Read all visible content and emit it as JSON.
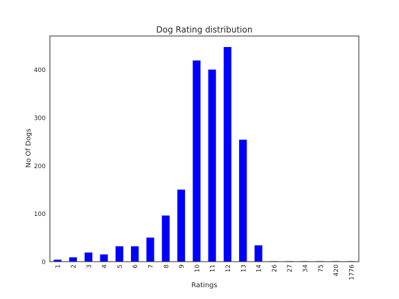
{
  "chart_data": {
    "type": "bar",
    "title": "Dog Rating distribution",
    "xlabel": "Ratings",
    "ylabel": "No Of Dogs",
    "categories": [
      "1",
      "2",
      "3",
      "4",
      "5",
      "6",
      "7",
      "8",
      "9",
      "10",
      "11",
      "12",
      "13",
      "14",
      "26",
      "27",
      "34",
      "75",
      "420",
      "1776"
    ],
    "values": [
      4,
      9,
      19,
      15,
      32,
      32,
      50,
      96,
      150,
      419,
      400,
      447,
      254,
      34,
      1,
      1,
      1,
      1,
      1,
      1
    ],
    "ylim": [
      0,
      470
    ],
    "yticks": [
      0,
      100,
      200,
      300,
      400
    ],
    "bar_color": "#0000ff",
    "grid": false,
    "legend": "none"
  }
}
